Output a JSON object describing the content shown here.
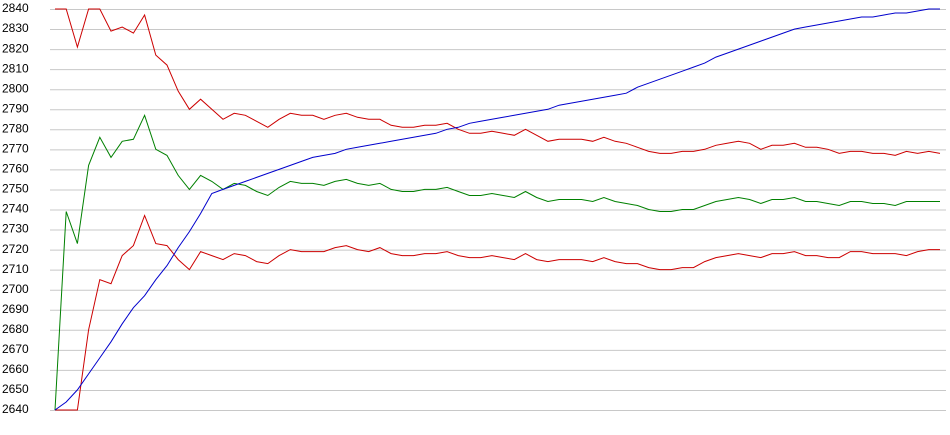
{
  "chart_data": {
    "type": "line",
    "categories": [
      null,
      null,
      null,
      null,
      null,
      null,
      null,
      null,
      null,
      null,
      null,
      null,
      null,
      null,
      null,
      null,
      null,
      null,
      null,
      null,
      null,
      null,
      null,
      null,
      null,
      null,
      null,
      null,
      null,
      null,
      null,
      null,
      null,
      null,
      null,
      null,
      null,
      null,
      null,
      null,
      null,
      null,
      null,
      null,
      null,
      null,
      null,
      null,
      null,
      null,
      null,
      null,
      null,
      null,
      null,
      null,
      null,
      null,
      null,
      null,
      null,
      null,
      null,
      null,
      null,
      null,
      null,
      null,
      null,
      null,
      null,
      null,
      null,
      null,
      null,
      null,
      null,
      null,
      null,
      null
    ],
    "series": [
      {
        "color": "#cc0000",
        "values": [
          2840,
          2840,
          2821,
          2840,
          2840,
          2829,
          2831,
          2828,
          2837,
          2817,
          2812,
          2799,
          2790,
          2795,
          2790,
          2785,
          2788,
          2787,
          2784,
          2781,
          2785,
          2788,
          2787,
          2787,
          2785,
          2787,
          2788,
          2786,
          2785,
          2785,
          2782,
          2781,
          2781,
          2782,
          2782,
          2783,
          2780,
          2778,
          2778,
          2779,
          2778,
          2777,
          2780,
          2777,
          2774,
          2775,
          2775,
          2775,
          2774,
          2776,
          2774,
          2773,
          2771,
          2769,
          2768,
          2768,
          2769,
          2769,
          2770,
          2772,
          2773,
          2774,
          2773,
          2770,
          2772,
          2772,
          2773,
          2771,
          2771,
          2770,
          2768,
          2769,
          2769,
          2768,
          2768,
          2767,
          2769,
          2768,
          2769,
          2768
        ]
      },
      {
        "color": "#008000",
        "values": [
          2640,
          2739,
          2723,
          2762,
          2776,
          2766,
          2774,
          2775,
          2787,
          2770,
          2767,
          2757,
          2750,
          2757,
          2754,
          2750,
          2753,
          2752,
          2749,
          2747,
          2751,
          2754,
          2753,
          2753,
          2752,
          2754,
          2755,
          2753,
          2752,
          2753,
          2750,
          2749,
          2749,
          2750,
          2750,
          2751,
          2749,
          2747,
          2747,
          2748,
          2747,
          2746,
          2749,
          2746,
          2744,
          2745,
          2745,
          2745,
          2744,
          2746,
          2744,
          2743,
          2742,
          2740,
          2739,
          2739,
          2740,
          2740,
          2742,
          2744,
          2745,
          2746,
          2745,
          2743,
          2745,
          2745,
          2746,
          2744,
          2744,
          2743,
          2742,
          2744,
          2744,
          2743,
          2743,
          2742,
          2744,
          2744,
          2744,
          2744
        ]
      },
      {
        "color": "#cc0000",
        "values": [
          2640,
          2640,
          2640,
          2680,
          2705,
          2703,
          2717,
          2722,
          2737,
          2723,
          2722,
          2715,
          2710,
          2719,
          2717,
          2715,
          2718,
          2717,
          2714,
          2713,
          2717,
          2720,
          2719,
          2719,
          2719,
          2721,
          2722,
          2720,
          2719,
          2721,
          2718,
          2717,
          2717,
          2718,
          2718,
          2719,
          2717,
          2716,
          2716,
          2717,
          2716,
          2715,
          2718,
          2715,
          2714,
          2715,
          2715,
          2715,
          2714,
          2716,
          2714,
          2713,
          2713,
          2711,
          2710,
          2710,
          2711,
          2711,
          2714,
          2716,
          2717,
          2718,
          2717,
          2716,
          2718,
          2718,
          2719,
          2717,
          2717,
          2716,
          2716,
          2719,
          2719,
          2718,
          2718,
          2718,
          2717,
          2719,
          2720,
          2720
        ]
      },
      {
        "color": "#0000cc",
        "values": [
          2640,
          2644,
          2650,
          2658,
          2666,
          2674,
          2683,
          2691,
          2697,
          2705,
          2712,
          2721,
          2729,
          2738,
          2748,
          2750,
          2752,
          2754,
          2756,
          2758,
          2760,
          2762,
          2764,
          2766,
          2767,
          2768,
          2770,
          2771,
          2772,
          2773,
          2774,
          2775,
          2776,
          2777,
          2778,
          2780,
          2781,
          2783,
          2784,
          2785,
          2786,
          2787,
          2788,
          2789,
          2790,
          2792,
          2793,
          2794,
          2795,
          2796,
          2797,
          2798,
          2801,
          2803,
          2805,
          2807,
          2809,
          2811,
          2813,
          2816,
          2818,
          2820,
          2822,
          2824,
          2826,
          2828,
          2830,
          2831,
          2832,
          2833,
          2834,
          2835,
          2836,
          2836,
          2837,
          2838,
          2838,
          2839,
          2840,
          2840
        ]
      }
    ],
    "ylim": [
      2640,
      2840
    ],
    "yticks": [
      2640,
      2650,
      2660,
      2670,
      2680,
      2690,
      2700,
      2710,
      2720,
      2730,
      2740,
      2750,
      2760,
      2770,
      2780,
      2790,
      2800,
      2810,
      2820,
      2830,
      2840
    ],
    "grid": true
  }
}
